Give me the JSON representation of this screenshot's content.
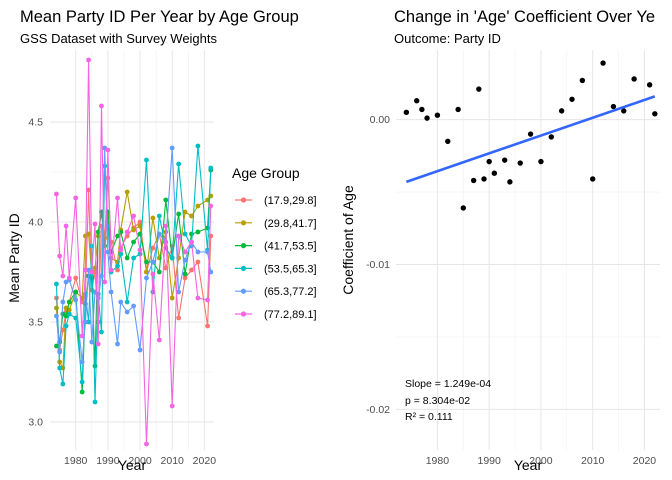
{
  "left": {
    "title": "Mean Party ID Per Year by Age Group",
    "subtitle": "GSS Dataset with Survey Weights"
  },
  "right": {
    "title": "Change in 'Age' Coefficient Over Ye",
    "subtitle": "Outcome: Party ID"
  },
  "chart_data": [
    {
      "type": "line",
      "title": "Mean Party ID Per Year by Age Group",
      "subtitle": "GSS Dataset with Survey Weights",
      "xlabel": "Year",
      "ylabel": "Mean Party ID",
      "xlim": [
        1972,
        2023
      ],
      "ylim": [
        2.86,
        4.86
      ],
      "xticks": [
        1980,
        1990,
        2000,
        2010,
        2020
      ],
      "yticks": [
        3.0,
        3.5,
        4.0,
        4.5
      ],
      "x_tick_labels": [
        "1980",
        "1990",
        "2000",
        "2010",
        "2020"
      ],
      "y_tick_labels": [
        "3.0",
        "3.5",
        "4.0",
        "4.5"
      ],
      "grid": true,
      "legend": {
        "title": "Age Group",
        "position": "right"
      },
      "x": [
        1974,
        1975,
        1976,
        1977,
        1978,
        1980,
        1982,
        1983,
        1984,
        1985,
        1986,
        1987,
        1988,
        1989,
        1990,
        1991,
        1993,
        1994,
        1996,
        1998,
        2000,
        2002,
        2004,
        2006,
        2008,
        2010,
        2012,
        2014,
        2016,
        2018,
        2021,
        2022
      ],
      "series": [
        {
          "name": "(17.9,29.8]",
          "color": "#F8766D",
          "values": [
            3.62,
            3.36,
            3.46,
            3.55,
            3.6,
            3.72,
            3.6,
            3.63,
            4.16,
            3.66,
            3.75,
            3.5,
            3.98,
            3.92,
            4.22,
            3.9,
            3.76,
            3.87,
            3.93,
            3.97,
            4.0,
            3.75,
            3.87,
            3.94,
            3.77,
            3.88,
            3.52,
            3.72,
            3.76,
            3.8,
            3.48,
            3.93
          ]
        },
        {
          "name": "(29.8,41.7]",
          "color": "#B79F00",
          "values": [
            3.57,
            3.3,
            3.27,
            3.57,
            3.56,
            3.65,
            3.62,
            3.93,
            3.94,
            3.73,
            3.77,
            3.93,
            4.05,
            3.92,
            4.03,
            3.82,
            3.8,
            3.96,
            4.15,
            3.96,
            3.98,
            3.75,
            4.02,
            3.82,
            3.95,
            3.62,
            3.82,
            4.05,
            4.03,
            4.08,
            4.11,
            4.13
          ]
        },
        {
          "name": "(41.7,53.5]",
          "color": "#00BA38",
          "values": [
            3.38,
            3.4,
            3.54,
            3.53,
            3.6,
            3.65,
            3.15,
            3.59,
            3.73,
            3.72,
            3.28,
            3.95,
            4.05,
            3.88,
            4.05,
            3.85,
            3.93,
            3.95,
            3.82,
            3.9,
            3.94,
            3.8,
            3.8,
            3.75,
            4.11,
            3.82,
            4.04,
            3.74,
            3.94,
            3.95,
            3.97,
            4.26
          ]
        },
        {
          "name": "(53.5,65.3]",
          "color": "#00BFC4",
          "values": [
            3.69,
            3.27,
            3.19,
            3.48,
            3.54,
            3.52,
            3.2,
            3.64,
            3.5,
            3.88,
            3.1,
            3.64,
            3.45,
            4.28,
            3.98,
            3.75,
            3.78,
            3.84,
            3.6,
            3.82,
            3.84,
            4.31,
            3.65,
            4.03,
            3.87,
            3.82,
            4.29,
            3.94,
            3.88,
            4.38,
            3.86,
            4.27
          ]
        },
        {
          "name": "(65.3,77.2]",
          "color": "#619CFF",
          "values": [
            3.53,
            3.35,
            3.6,
            3.7,
            3.71,
            3.61,
            3.3,
            3.5,
            3.76,
            3.4,
            3.65,
            3.62,
            3.73,
            4.37,
            3.85,
            3.65,
            3.39,
            3.6,
            3.55,
            3.58,
            3.36,
            3.72,
            3.8,
            3.94,
            3.9,
            4.37,
            3.65,
            3.81,
            3.9,
            3.85,
            3.85,
            3.75
          ]
        },
        {
          "name": "(77.2,89.1]",
          "color": "#F564E3",
          "values": [
            4.14,
            3.83,
            3.73,
            3.98,
            3.72,
            4.12,
            3.43,
            3.76,
            4.81,
            3.75,
            3.99,
            3.39,
            4.58,
            3.7,
            4.36,
            3.76,
            4.12,
            3.86,
            3.95,
            4.03,
            3.86,
            2.89,
            3.74,
            3.41,
            3.98,
            3.08,
            3.93,
            3.85,
            3.9,
            3.62,
            3.61,
            4.08
          ]
        }
      ]
    },
    {
      "type": "scatter",
      "title": "Change in 'Age' Coefficient Over Ye",
      "subtitle": "Outcome: Party ID",
      "xlabel": "Year",
      "ylabel": "Coefficient of Age",
      "xlim": [
        1972,
        2023
      ],
      "ylim": [
        -0.0228,
        0.0048
      ],
      "xticks": [
        1980,
        1990,
        2000,
        2010,
        2020
      ],
      "yticks": [
        -0.02,
        -0.01,
        0.0
      ],
      "x_tick_labels": [
        "1980",
        "1990",
        "2000",
        "2010",
        "2020"
      ],
      "y_tick_labels": [
        "-0.02",
        "-0.01",
        "0.00"
      ],
      "grid": true,
      "x": [
        1974,
        1976,
        1977,
        1978,
        1980,
        1982,
        1984,
        1985,
        1987,
        1988,
        1989,
        1990,
        1991,
        1993,
        1994,
        1996,
        1998,
        2000,
        2002,
        2004,
        2006,
        2008,
        2010,
        2012,
        2014,
        2016,
        2018,
        2021,
        2022
      ],
      "y": [
        0.0005,
        0.0013,
        0.0007,
        0.0001,
        0.0003,
        -0.0015,
        0.0007,
        -0.0061,
        -0.0042,
        0.0021,
        -0.0041,
        -0.0029,
        -0.0037,
        -0.0028,
        -0.0043,
        -0.003,
        -0.001,
        -0.0029,
        -0.0012,
        0.0006,
        0.0014,
        0.0027,
        -0.0041,
        0.0039,
        0.0009,
        0.0006,
        0.0028,
        0.0024,
        0.0004
      ],
      "trend_line": {
        "color": "#3366FF",
        "x": [
          1974,
          2022
        ],
        "y": [
          -0.0043,
          0.0016
        ]
      },
      "annotations": [
        "Slope = 1.249e-04",
        "p = 8.304e-02",
        "R² = 0.111"
      ]
    }
  ]
}
